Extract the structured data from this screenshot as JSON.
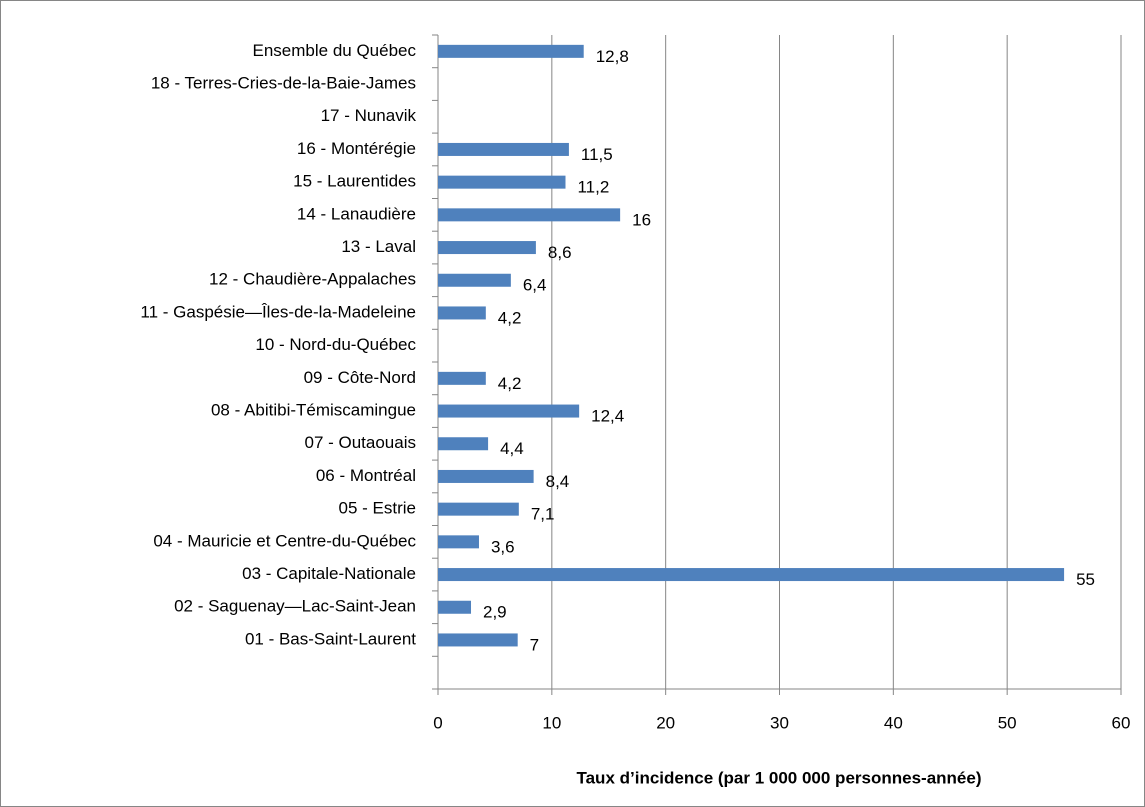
{
  "chart_data": {
    "type": "bar",
    "orientation": "horizontal",
    "x_label": "Taux d’incidence (par 1 000 000 personnes-année)",
    "categories": [
      "Ensemble du Québec",
      "18 - Terres-Cries-de-la-Baie-James",
      "17 - Nunavik",
      "16 - Montérégie",
      "15 - Laurentides",
      "14 - Lanaudière",
      "13 - Laval",
      "12 - Chaudière-Appalaches",
      "11 - Gaspésie—Îles-de-la-Madeleine",
      "10 - Nord-du-Québec",
      "09 - Côte-Nord",
      "08 - Abitibi-Témiscamingue",
      "07 - Outaouais",
      "06 - Montréal",
      "05 - Estrie",
      "04 - Mauricie et Centre-du-Québec",
      "03 - Capitale-Nationale",
      "02 - Saguenay—Lac-Saint-Jean",
      "01 - Bas-Saint-Laurent"
    ],
    "values": [
      12.8,
      null,
      null,
      11.5,
      11.2,
      16,
      8.6,
      6.4,
      4.2,
      null,
      4.2,
      12.4,
      4.4,
      8.4,
      7.1,
      3.6,
      55,
      2.9,
      7
    ],
    "value_labels": [
      "12,8",
      null,
      null,
      "11,5",
      "11,2",
      "16",
      "8,6",
      "6,4",
      "4,2",
      null,
      "4,2",
      "12,4",
      "4,4",
      "8,4",
      "7,1",
      "3,6",
      "55",
      "2,9",
      "7"
    ],
    "color": "#4f81bd",
    "xlim": [
      0,
      60
    ],
    "xticks": [
      0,
      10,
      20,
      30,
      40,
      50,
      60
    ],
    "grid": true
  }
}
